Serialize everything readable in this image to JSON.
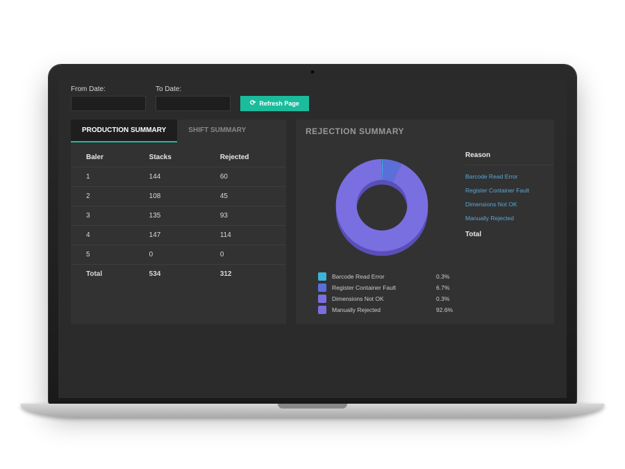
{
  "filters": {
    "from_label": "From Date:",
    "to_label": "To Date:",
    "refresh_label": "Refresh Page"
  },
  "tabs": {
    "production": "PRODUCTION SUMMARY",
    "shift": "SHIFT SUMMARY"
  },
  "production_table": {
    "columns": [
      "Baler",
      "Stacks",
      "Rejected"
    ],
    "rows": [
      [
        "1",
        "144",
        "60"
      ],
      [
        "2",
        "108",
        "45"
      ],
      [
        "3",
        "135",
        "93"
      ],
      [
        "4",
        "147",
        "114"
      ],
      [
        "5",
        "0",
        "0"
      ]
    ],
    "total_label": "Total",
    "total_stacks": "534",
    "total_rejected": "312"
  },
  "rejection": {
    "title": "REJECTION SUMMARY",
    "donut": {
      "type": "donut",
      "background_color": "#323232",
      "inner_radius_ratio": 0.55,
      "slices": [
        {
          "label": "Barcode Read Error",
          "value_pct": 0.3,
          "color": "#3bb4d8"
        },
        {
          "label": "Register Container Fault",
          "value_pct": 6.7,
          "color": "#5b6fd8"
        },
        {
          "label": "Dimensions Not OK",
          "value_pct": 0.3,
          "color": "#7a6fe0"
        },
        {
          "label": "Manually Rejected",
          "value_pct": 92.6,
          "color": "#7a6fe0"
        }
      ],
      "shadow_color": "#5a4fb8"
    },
    "legend": [
      {
        "label": "Barcode Read Error",
        "pct": "0.3%",
        "color": "#3bb4d8"
      },
      {
        "label": "Register Container Fault",
        "pct": "6.7%",
        "color": "#5b6fd8"
      },
      {
        "label": "Dimensions Not OK",
        "pct": "0.3%",
        "color": "#7a6fe0"
      },
      {
        "label": "Manually Rejected",
        "pct": "92.6%",
        "color": "#7a6fe0"
      }
    ],
    "reason_header": "Reason",
    "reasons": [
      "Barcode Read Error",
      "Register Container Fault",
      "Dimensions Not OK",
      "Manually Rejected"
    ],
    "reason_total": "Total"
  },
  "colors": {
    "accent": "#1abc9c",
    "panel_bg": "#323232",
    "screen_bg": "#2b2b2b",
    "link": "#5ba8d6"
  }
}
